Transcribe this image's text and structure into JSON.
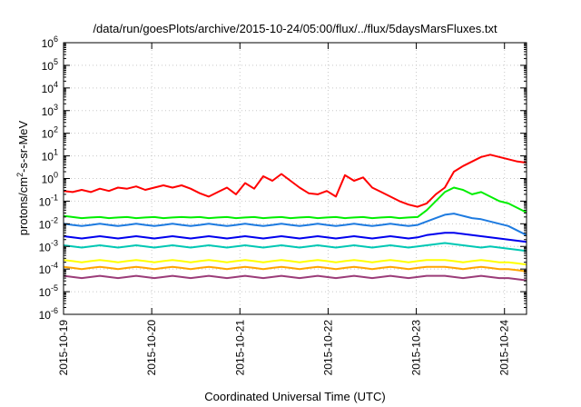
{
  "chart_data": {
    "type": "line",
    "title": "/data/run/goesPlots/archive/2015-10-24/05:00/flux/../flux/5daysMarsFluxes.txt",
    "xlabel": "Coordinated Universal Time (UTC)",
    "ylabel_base": "protons/cm",
    "ylabel_exp": "2",
    "ylabel_rest": "-s-sr-MeV",
    "y_scale": "log",
    "ylim_exp": [
      -6,
      6
    ],
    "y_tick_base": "10",
    "y_tick_exps": [
      "-6",
      "-5",
      "-4",
      "-3",
      "-2",
      "-1",
      "0",
      "1",
      "2",
      "3",
      "4",
      "5",
      "6"
    ],
    "xlim_days": [
      0,
      5.25
    ],
    "x_date_start": "2015-10-19",
    "x_ticks": [
      "2015-10-19",
      "2015-10-20",
      "2015-10-21",
      "2015-10-22",
      "2015-10-23",
      "2015-10-24"
    ],
    "grid": true,
    "series": [
      {
        "color": "#ff0000",
        "log_values": [
          -0.55,
          -0.6,
          -0.5,
          -0.6,
          -0.45,
          -0.55,
          -0.4,
          -0.45,
          -0.35,
          -0.5,
          -0.4,
          -0.3,
          -0.4,
          -0.3,
          -0.45,
          -0.65,
          -0.8,
          -0.6,
          -0.4,
          -0.7,
          -0.2,
          -0.45,
          0.1,
          -0.1,
          0.2,
          -0.1,
          -0.4,
          -0.65,
          -0.7,
          -0.55,
          -0.8,
          0.15,
          -0.1,
          0.05,
          -0.4,
          -0.6,
          -0.8,
          -1.0,
          -1.15,
          -1.25,
          -1.1,
          -0.7,
          -0.4,
          0.3,
          0.55,
          0.75,
          0.95,
          1.05,
          0.95,
          0.85,
          0.75,
          0.7
        ]
      },
      {
        "color": "#00ee00",
        "log_values": [
          -1.65,
          -1.7,
          -1.75,
          -1.72,
          -1.7,
          -1.75,
          -1.72,
          -1.7,
          -1.75,
          -1.72,
          -1.7,
          -1.75,
          -1.72,
          -1.7,
          -1.72,
          -1.7,
          -1.75,
          -1.72,
          -1.7,
          -1.75,
          -1.72,
          -1.7,
          -1.75,
          -1.72,
          -1.7,
          -1.75,
          -1.72,
          -1.7,
          -1.75,
          -1.72,
          -1.7,
          -1.75,
          -1.72,
          -1.7,
          -1.75,
          -1.72,
          -1.7,
          -1.75,
          -1.72,
          -1.7,
          -1.4,
          -1.0,
          -0.6,
          -0.4,
          -0.5,
          -0.7,
          -0.6,
          -0.8,
          -1.0,
          -1.1,
          -1.3,
          -1.5
        ]
      },
      {
        "color": "#1e7be0",
        "log_values": [
          -2.0,
          -2.05,
          -2.1,
          -2.05,
          -2.0,
          -2.05,
          -2.1,
          -2.05,
          -2.0,
          -2.05,
          -2.1,
          -2.05,
          -2.0,
          -2.05,
          -2.1,
          -2.05,
          -2.0,
          -2.05,
          -2.1,
          -2.05,
          -2.0,
          -2.05,
          -2.1,
          -2.05,
          -2.0,
          -2.05,
          -2.1,
          -2.05,
          -2.0,
          -2.05,
          -2.1,
          -2.05,
          -2.0,
          -2.05,
          -2.1,
          -2.05,
          -2.0,
          -2.05,
          -2.1,
          -2.05,
          -1.9,
          -1.75,
          -1.6,
          -1.55,
          -1.65,
          -1.75,
          -1.8,
          -1.9,
          -2.0,
          -2.1,
          -2.3,
          -2.5
        ]
      },
      {
        "color": "#0000ee",
        "log_values": [
          -2.55,
          -2.6,
          -2.65,
          -2.6,
          -2.55,
          -2.6,
          -2.65,
          -2.6,
          -2.55,
          -2.6,
          -2.65,
          -2.6,
          -2.55,
          -2.6,
          -2.65,
          -2.6,
          -2.55,
          -2.6,
          -2.65,
          -2.6,
          -2.55,
          -2.6,
          -2.65,
          -2.6,
          -2.55,
          -2.6,
          -2.65,
          -2.6,
          -2.55,
          -2.6,
          -2.65,
          -2.6,
          -2.55,
          -2.6,
          -2.65,
          -2.6,
          -2.55,
          -2.6,
          -2.65,
          -2.6,
          -2.5,
          -2.45,
          -2.4,
          -2.4,
          -2.45,
          -2.5,
          -2.55,
          -2.6,
          -2.65,
          -2.7,
          -2.75,
          -2.8
        ]
      },
      {
        "color": "#00c8b4",
        "log_values": [
          -2.95,
          -3.0,
          -3.05,
          -3.0,
          -2.95,
          -3.0,
          -3.05,
          -3.0,
          -2.95,
          -3.0,
          -3.05,
          -3.0,
          -2.95,
          -3.0,
          -3.05,
          -3.0,
          -2.95,
          -3.0,
          -3.05,
          -3.0,
          -2.95,
          -3.0,
          -3.05,
          -3.0,
          -2.95,
          -3.0,
          -3.05,
          -3.0,
          -2.95,
          -3.0,
          -3.05,
          -3.0,
          -2.95,
          -3.0,
          -3.05,
          -3.0,
          -2.95,
          -3.0,
          -3.05,
          -3.0,
          -2.95,
          -2.9,
          -2.85,
          -2.9,
          -2.95,
          -3.0,
          -3.05,
          -3.0,
          -3.05,
          -3.1,
          -3.15,
          -3.2
        ]
      },
      {
        "color": "#ffff00",
        "log_values": [
          -3.6,
          -3.65,
          -3.7,
          -3.65,
          -3.6,
          -3.65,
          -3.7,
          -3.65,
          -3.6,
          -3.65,
          -3.7,
          -3.65,
          -3.6,
          -3.65,
          -3.7,
          -3.65,
          -3.6,
          -3.65,
          -3.7,
          -3.65,
          -3.6,
          -3.65,
          -3.7,
          -3.65,
          -3.6,
          -3.65,
          -3.7,
          -3.65,
          -3.6,
          -3.65,
          -3.7,
          -3.65,
          -3.6,
          -3.65,
          -3.7,
          -3.65,
          -3.6,
          -3.65,
          -3.7,
          -3.65,
          -3.6,
          -3.6,
          -3.6,
          -3.65,
          -3.7,
          -3.65,
          -3.6,
          -3.65,
          -3.7,
          -3.7,
          -3.75,
          -3.8
        ]
      },
      {
        "color": "#ffa500",
        "log_values": [
          -3.9,
          -3.95,
          -4.0,
          -3.95,
          -3.9,
          -3.95,
          -4.0,
          -3.95,
          -3.9,
          -3.95,
          -4.0,
          -3.95,
          -3.9,
          -3.95,
          -4.0,
          -3.95,
          -3.9,
          -3.95,
          -4.0,
          -3.95,
          -3.9,
          -3.95,
          -4.0,
          -3.95,
          -3.9,
          -3.95,
          -4.0,
          -3.95,
          -3.9,
          -3.95,
          -4.0,
          -3.95,
          -3.9,
          -3.95,
          -4.0,
          -3.95,
          -3.9,
          -3.95,
          -4.0,
          -3.95,
          -3.9,
          -3.9,
          -3.9,
          -3.95,
          -4.0,
          -3.95,
          -3.9,
          -3.95,
          -4.0,
          -4.0,
          -4.05,
          -4.1
        ]
      },
      {
        "color": "#9b3c78",
        "log_values": [
          -4.3,
          -4.35,
          -4.4,
          -4.35,
          -4.3,
          -4.35,
          -4.4,
          -4.35,
          -4.3,
          -4.35,
          -4.4,
          -4.35,
          -4.3,
          -4.35,
          -4.4,
          -4.35,
          -4.3,
          -4.35,
          -4.4,
          -4.35,
          -4.3,
          -4.35,
          -4.4,
          -4.35,
          -4.3,
          -4.35,
          -4.4,
          -4.35,
          -4.3,
          -4.35,
          -4.4,
          -4.35,
          -4.3,
          -4.35,
          -4.4,
          -4.35,
          -4.3,
          -4.35,
          -4.4,
          -4.35,
          -4.3,
          -4.3,
          -4.3,
          -4.35,
          -4.4,
          -4.35,
          -4.3,
          -4.35,
          -4.4,
          -4.4,
          -4.45,
          -4.5
        ]
      }
    ]
  }
}
